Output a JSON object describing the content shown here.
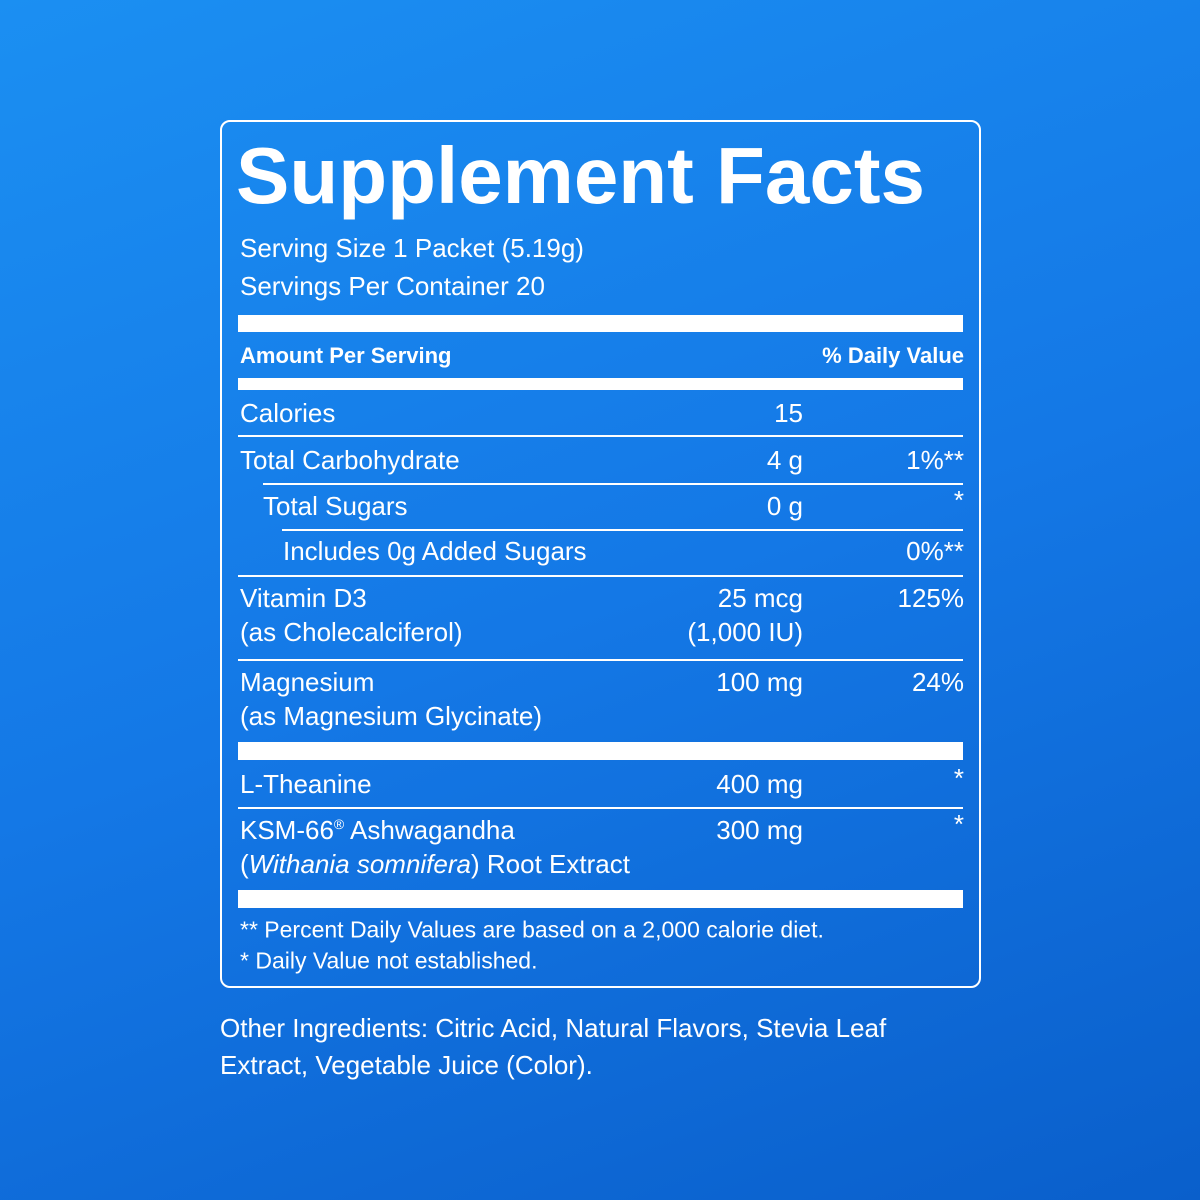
{
  "title": "Supplement Facts",
  "serving": [
    "Serving Size 1 Packet (5.19g)",
    "Servings Per Container 20"
  ],
  "header": {
    "amount": "Amount Per Serving",
    "dv": "% Daily Value"
  },
  "rows": [
    {
      "name": [
        "Calories"
      ],
      "amount": [
        "15"
      ]
    },
    {
      "name": [
        "Total Carbohydrate"
      ],
      "amount": [
        "4 g"
      ],
      "dv": "1%**"
    },
    {
      "name": [
        "Total Sugars"
      ],
      "amount": [
        "0 g"
      ],
      "dv": "*"
    },
    {
      "name": [
        "Includes 0g Added Sugars"
      ],
      "dv": "0%**"
    },
    {
      "name": [
        "Vitamin D3",
        "(as Cholecalciferol)"
      ],
      "amount": [
        "25 mcg",
        "(1,000 IU)"
      ],
      "dv": "125%"
    },
    {
      "name": [
        "Magnesium",
        "(as Magnesium Glycinate)"
      ],
      "amount": [
        "100 mg"
      ],
      "dv": "24%"
    },
    {
      "name": [
        "L-Theanine"
      ],
      "amount": [
        "400 mg"
      ],
      "dv": "*"
    },
    {
      "name": [
        [
          "KSM-66",
          "®",
          " Ashwagandha"
        ],
        [
          "(",
          "Withania somnifera",
          ") Root Extract"
        ]
      ],
      "amount": [
        "300 mg"
      ],
      "dv": "*"
    }
  ],
  "footnotes": [
    "** Percent Daily Values are based on a 2,000 calorie diet.",
    "* Daily Value not established."
  ],
  "other_ingredients": [
    "Other Ingredients: Citric Acid, Natural Flavors, Stevia Leaf",
    "Extract, Vegetable Juice (Color)."
  ]
}
